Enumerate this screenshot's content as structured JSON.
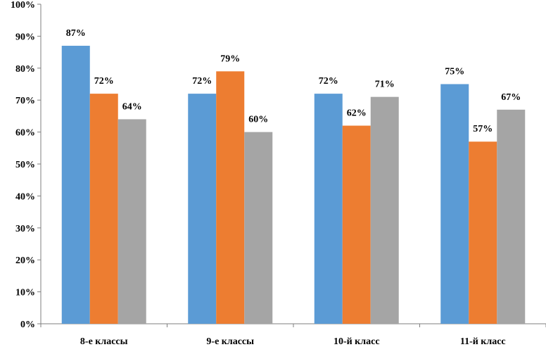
{
  "chart_data": {
    "type": "bar",
    "categories": [
      "8-е классы",
      "9-е классы",
      "10-й класс",
      "11-й класс"
    ],
    "series": [
      {
        "values": [
          87,
          72,
          72,
          75
        ],
        "color": "#5B9BD5"
      },
      {
        "values": [
          72,
          79,
          62,
          57
        ],
        "color": "#ED7D31"
      },
      {
        "values": [
          64,
          60,
          71,
          67
        ],
        "color": "#A5A5A5"
      }
    ],
    "value_suffix": "%",
    "ylim": [
      0,
      100
    ],
    "yticks": [
      "0%",
      "10%",
      "20%",
      "30%",
      "40%",
      "50%",
      "60%",
      "70%",
      "80%",
      "90%",
      "100%"
    ],
    "grid": false,
    "legend": "none",
    "data_labels": true
  }
}
